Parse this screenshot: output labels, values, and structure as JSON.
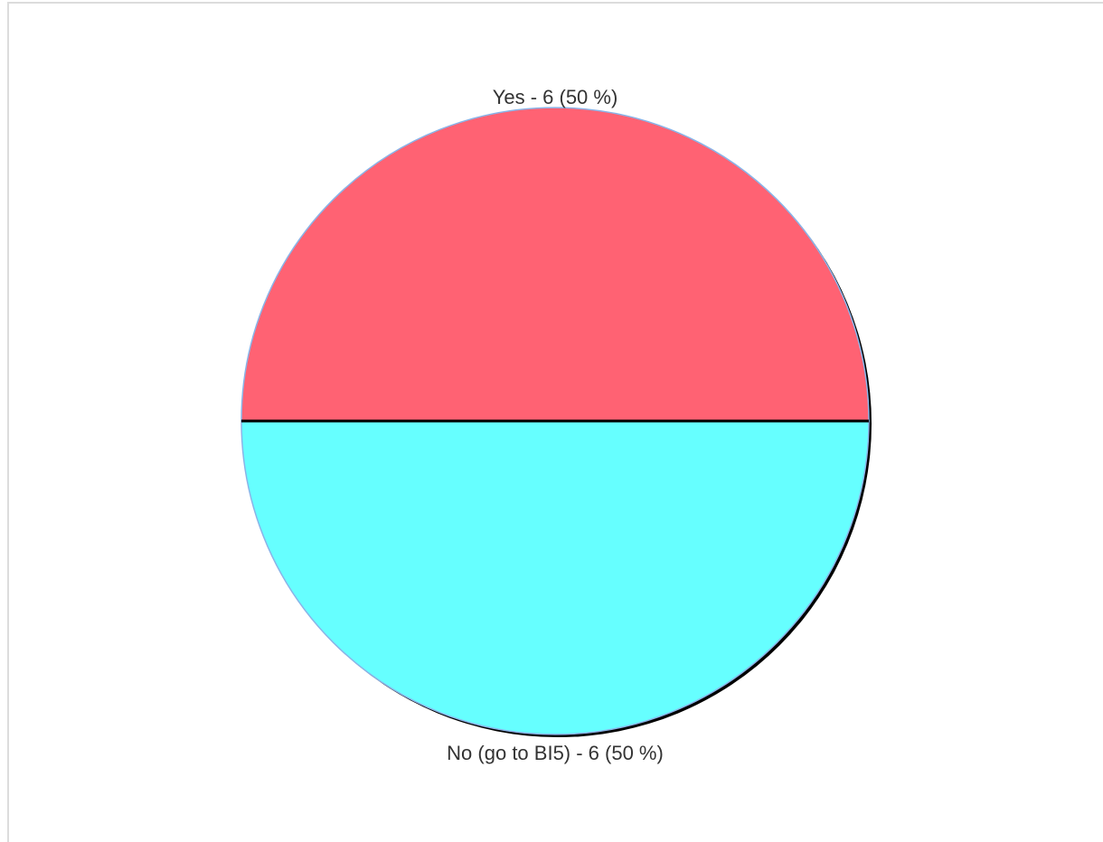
{
  "chart_data": {
    "type": "pie",
    "title": "",
    "slices": [
      {
        "label": "Yes",
        "value": 6,
        "percent": 50,
        "color": "#ff6273",
        "display": "Yes - 6 (50 %)"
      },
      {
        "label": "No (go to BI5)",
        "value": 6,
        "percent": 50,
        "color": "#66ffff",
        "display": "No (go to BI5) - 6 (50 %)"
      }
    ],
    "legend": "none"
  },
  "colors": {
    "outline": "#8ab4e8",
    "divider": "#000000",
    "shadow": "#000000"
  }
}
